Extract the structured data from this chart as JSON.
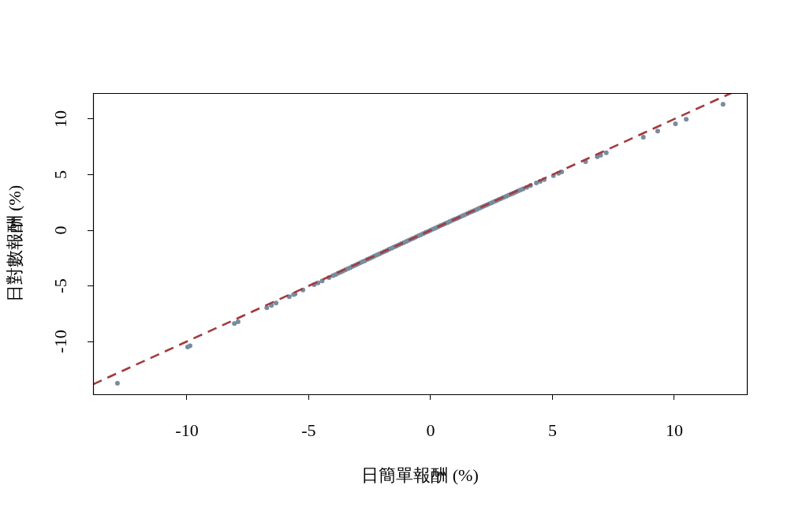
{
  "chart_data": {
    "type": "scatter",
    "xlabel": "日簡單報酬 (%)",
    "ylabel": "日對數報酬 (%)",
    "xlim": [
      -13.85,
      12.98
    ],
    "ylim": [
      -14.75,
      12.34
    ],
    "xticks": [
      -10,
      -5,
      0,
      5,
      10
    ],
    "yticks": [
      -10,
      -5,
      0,
      5,
      10
    ],
    "grid": false,
    "legend": false,
    "marker": "circle",
    "series": [
      {
        "color": "#788c9d",
        "x": [
          -12.85,
          -9.97,
          -9.87,
          -8.05,
          -7.9,
          -6.72,
          -6.53,
          -6.34,
          -5.8,
          -5.62,
          -5.56,
          -5.24,
          -4.78,
          -4.62,
          -4.45,
          -4.17,
          -4,
          -3.9,
          -3.8,
          -3.7,
          -3.6,
          -3.5,
          -3.4,
          -3.3,
          -3.2,
          -3.1,
          -3,
          -2.9,
          -2.8,
          -2.7,
          -2.6,
          -2.5,
          -2.4,
          -2.3,
          -2.2,
          -2.1,
          -2,
          -1.9,
          -1.8,
          -1.7,
          -1.6,
          -1.5,
          -1.4,
          -1.3,
          -1.2,
          -1.1,
          -1,
          -0.9,
          -0.8,
          -0.7,
          -0.6,
          -0.5,
          -0.4,
          -0.3,
          -0.2,
          -0.1,
          0,
          0.1,
          0.2,
          0.3,
          0.4,
          0.5,
          0.6,
          0.7,
          0.8,
          0.9,
          1,
          1.1,
          1.2,
          1.3,
          1.4,
          1.5,
          1.6,
          1.7,
          1.8,
          1.9,
          2,
          2.1,
          2.2,
          2.3,
          2.4,
          2.5,
          2.6,
          2.7,
          2.8,
          2.9,
          3,
          3.1,
          3.2,
          3.3,
          3.4,
          3.5,
          3.6,
          3.7,
          3.8,
          3.95,
          4.1,
          4.34,
          4.5,
          4.66,
          5.04,
          5.25,
          5.38,
          6.36,
          6.84,
          6.98,
          7.21,
          8.73,
          9.32,
          10.05,
          10.49,
          12
        ],
        "values": [
          -13.75,
          -10.5,
          -10.39,
          -8.39,
          -8.23,
          -6.96,
          -6.75,
          -6.55,
          -5.98,
          -5.78,
          -5.72,
          -5.38,
          -4.9,
          -4.73,
          -4.55,
          -4.26,
          -4.08,
          -3.98,
          -3.87,
          -3.77,
          -3.67,
          -3.56,
          -3.46,
          -3.36,
          -3.25,
          -3.15,
          -3.05,
          -2.94,
          -2.84,
          -2.74,
          -2.63,
          -2.53,
          -2.43,
          -2.33,
          -2.22,
          -2.12,
          -2.02,
          -1.92,
          -1.82,
          -1.71,
          -1.61,
          -1.51,
          -1.41,
          -1.31,
          -1.21,
          -1.11,
          -1.01,
          -0.9,
          -0.8,
          -0.7,
          -0.6,
          -0.5,
          -0.4,
          -0.3,
          -0.2,
          -0.1,
          0,
          0.1,
          0.2,
          0.3,
          0.4,
          0.5,
          0.6,
          0.7,
          0.8,
          0.9,
          1,
          1.09,
          1.19,
          1.29,
          1.39,
          1.49,
          1.59,
          1.69,
          1.78,
          1.88,
          1.98,
          2.08,
          2.18,
          2.27,
          2.37,
          2.47,
          2.57,
          2.66,
          2.76,
          2.86,
          2.96,
          3.05,
          3.15,
          3.25,
          3.34,
          3.44,
          3.54,
          3.63,
          3.73,
          3.87,
          4.02,
          4.25,
          4.4,
          4.55,
          4.92,
          5.12,
          5.24,
          6.17,
          6.62,
          6.75,
          6.96,
          8.37,
          8.91,
          9.58,
          9.98,
          11.33
        ]
      },
      {
        "type": "line",
        "color": "#a33a3e",
        "line_style": "dashed",
        "marker": "none",
        "x": [
          -13.85,
          12.34
        ],
        "values": [
          -13.85,
          12.34
        ]
      }
    ]
  }
}
